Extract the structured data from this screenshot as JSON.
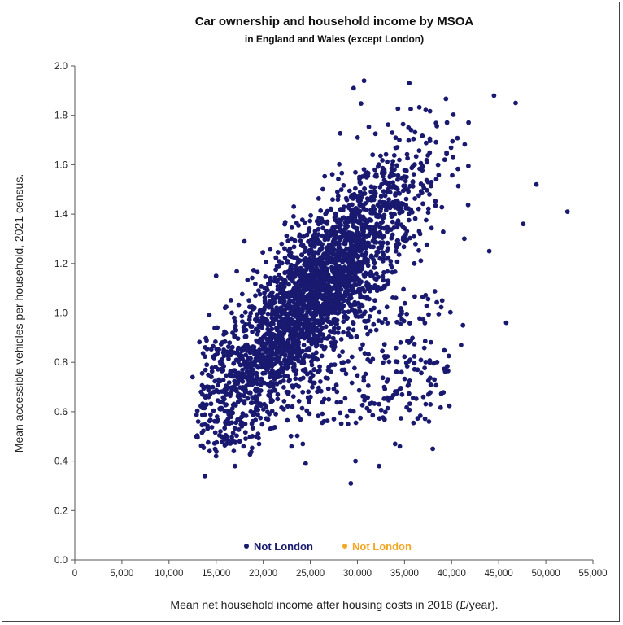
{
  "chart_data": {
    "type": "scatter",
    "title": "Car ownership and household income by MSOA",
    "subtitle": "in England and Wales (except London)",
    "xlabel": "Mean net household income after housing costs in 2018 (£/year).",
    "ylabel": "Mean accessible vehicles per household, 2021 census.",
    "xlim": [
      0,
      55000
    ],
    "ylim": [
      0,
      2.0
    ],
    "x_ticks": [
      0,
      5000,
      10000,
      15000,
      20000,
      25000,
      30000,
      35000,
      40000,
      45000,
      50000,
      55000
    ],
    "x_tick_labels": [
      "0",
      "5,000",
      "10,000",
      "15,000",
      "20,000",
      "25,000",
      "30,000",
      "35,000",
      "40,000",
      "45,000",
      "50,000",
      "55,000"
    ],
    "y_ticks": [
      0,
      0.2,
      0.4,
      0.6,
      0.8,
      1.0,
      1.2,
      1.4,
      1.6,
      1.8,
      2.0
    ],
    "y_tick_labels": [
      "0.0",
      "0.2",
      "0.4",
      "0.6",
      "0.8",
      "1.0",
      "1.2",
      "1.4",
      "1.6",
      "1.8",
      "2.0"
    ],
    "legend": {
      "placement": "bottom-center",
      "entries": [
        {
          "label": "Not London",
          "color": "#191970"
        },
        {
          "label": "Not London",
          "color": "#f5a623"
        }
      ]
    },
    "series": [
      {
        "name": "Not London",
        "color": "#191970",
        "description": "~6,800 MSOAs; dense cluster running from about (12,000, 0.75) to (38,000, 1.8); representative sampled points below",
        "points": [
          {
            "x": 12500,
            "y": 0.74
          },
          {
            "x": 12900,
            "y": 0.5
          },
          {
            "x": 13100,
            "y": 0.56
          },
          {
            "x": 13800,
            "y": 0.34
          },
          {
            "x": 14200,
            "y": 0.66
          },
          {
            "x": 15000,
            "y": 0.42
          },
          {
            "x": 15600,
            "y": 0.5
          },
          {
            "x": 17000,
            "y": 0.38
          },
          {
            "x": 17500,
            "y": 0.48
          },
          {
            "x": 23000,
            "y": 0.46
          },
          {
            "x": 24500,
            "y": 0.39
          },
          {
            "x": 24200,
            "y": 0.47
          },
          {
            "x": 27500,
            "y": 0.57
          },
          {
            "x": 29000,
            "y": 0.55
          },
          {
            "x": 29300,
            "y": 0.31
          },
          {
            "x": 29800,
            "y": 0.4
          },
          {
            "x": 32300,
            "y": 0.38
          },
          {
            "x": 34000,
            "y": 0.47
          },
          {
            "x": 34500,
            "y": 0.46
          },
          {
            "x": 37000,
            "y": 0.66
          },
          {
            "x": 38000,
            "y": 0.45
          },
          {
            "x": 41000,
            "y": 0.87
          },
          {
            "x": 45800,
            "y": 0.96
          },
          {
            "x": 52300,
            "y": 1.41
          },
          {
            "x": 49000,
            "y": 1.52
          },
          {
            "x": 47600,
            "y": 1.36
          },
          {
            "x": 46800,
            "y": 1.85
          },
          {
            "x": 44500,
            "y": 1.88
          },
          {
            "x": 44000,
            "y": 1.25
          },
          {
            "x": 35500,
            "y": 1.93
          },
          {
            "x": 30700,
            "y": 1.94
          },
          {
            "x": 29600,
            "y": 1.91
          },
          {
            "x": 41200,
            "y": 0.95
          },
          {
            "x": 39000,
            "y": 1.05
          },
          {
            "x": 15000,
            "y": 1.15
          },
          {
            "x": 18000,
            "y": 1.29
          }
        ]
      }
    ]
  }
}
